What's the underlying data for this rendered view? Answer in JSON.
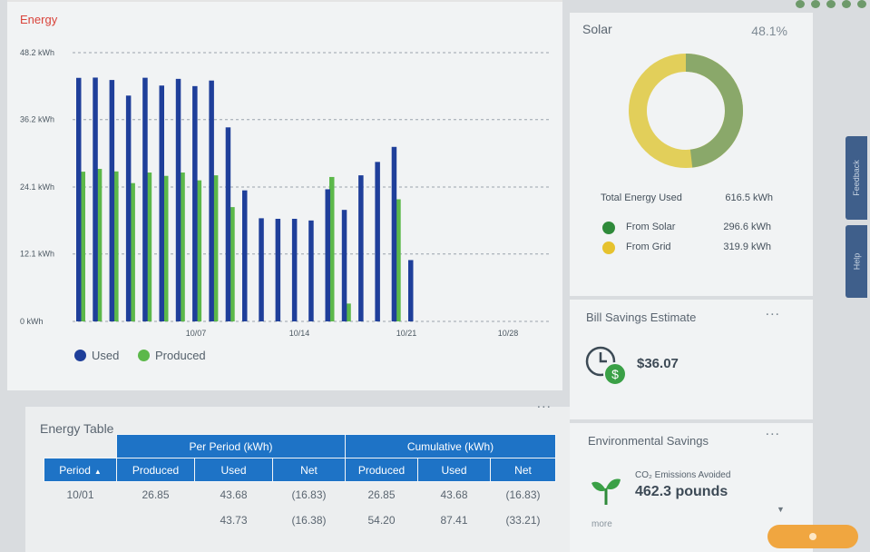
{
  "energy": {
    "title": "Energy",
    "legend": {
      "used": "Used",
      "produced": "Produced"
    },
    "colors": {
      "used": "#1f3f9a",
      "produced": "#5cb84a",
      "title": "#d9433a"
    }
  },
  "chart_data": {
    "type": "bar",
    "title": "Energy",
    "y_ticks": [
      "48.2 kWh",
      "36.2 kWh",
      "24.1 kWh",
      "12.1 kWh",
      "0 kWh"
    ],
    "ylim": [
      0,
      48.2
    ],
    "x_labels": [
      "10/07",
      "10/14",
      "10/21",
      "10/28"
    ],
    "grid": "dashed",
    "legend_position": "bottom-left",
    "series": [
      {
        "name": "Used",
        "values": [
          43.68,
          43.73,
          43.3,
          40.5,
          43.7,
          42.3,
          43.5,
          42.2,
          43.2,
          34.8,
          23.5,
          18.5,
          18.4,
          18.4,
          18.1,
          23.7,
          20.0,
          26.2,
          28.6,
          31.3,
          11.0
        ]
      },
      {
        "name": "Produced",
        "values": [
          26.85,
          27.35,
          26.9,
          24.8,
          26.7,
          26.1,
          26.7,
          25.3,
          26.2,
          20.5,
          0,
          0,
          0,
          0,
          0,
          25.9,
          3.2,
          0,
          0,
          21.9,
          0
        ]
      }
    ]
  },
  "table": {
    "title": "Energy Table",
    "group_headers": {
      "per_period": "Per Period (kWh)",
      "cumulative": "Cumulative (kWh)"
    },
    "columns": [
      "Period",
      "Produced",
      "Used",
      "Net",
      "Produced",
      "Used",
      "Net"
    ],
    "rows": [
      [
        "10/01",
        "26.85",
        "43.68",
        "(16.83)",
        "26.85",
        "43.68",
        "(16.83)"
      ],
      [
        "",
        "",
        "43.73",
        "(16.38)",
        "54.20",
        "87.41",
        "(33.21)"
      ]
    ]
  },
  "solar": {
    "title": "Solar",
    "percent": "48.1%",
    "solar_fraction": 0.481,
    "colors": {
      "solar": "#8aa86a",
      "grid": "#e2cf5a"
    },
    "total_label": "Total Energy Used",
    "total_value": "616.5 kWh",
    "from_solar_label": "From Solar",
    "from_solar_value": "296.6 kWh",
    "from_grid_label": "From Grid",
    "from_grid_value": "319.9 kWh"
  },
  "bill": {
    "title": "Bill Savings Estimate",
    "amount": "$36.07",
    "more": "..."
  },
  "env": {
    "title": "Environmental Savings",
    "co2_label": "CO₂ Emissions Avoided",
    "co2_value": "462.3 pounds",
    "more_link": "more",
    "more": "..."
  },
  "side_tabs": {
    "feedback": "Feedback",
    "help": "Help"
  },
  "table_more": "..."
}
